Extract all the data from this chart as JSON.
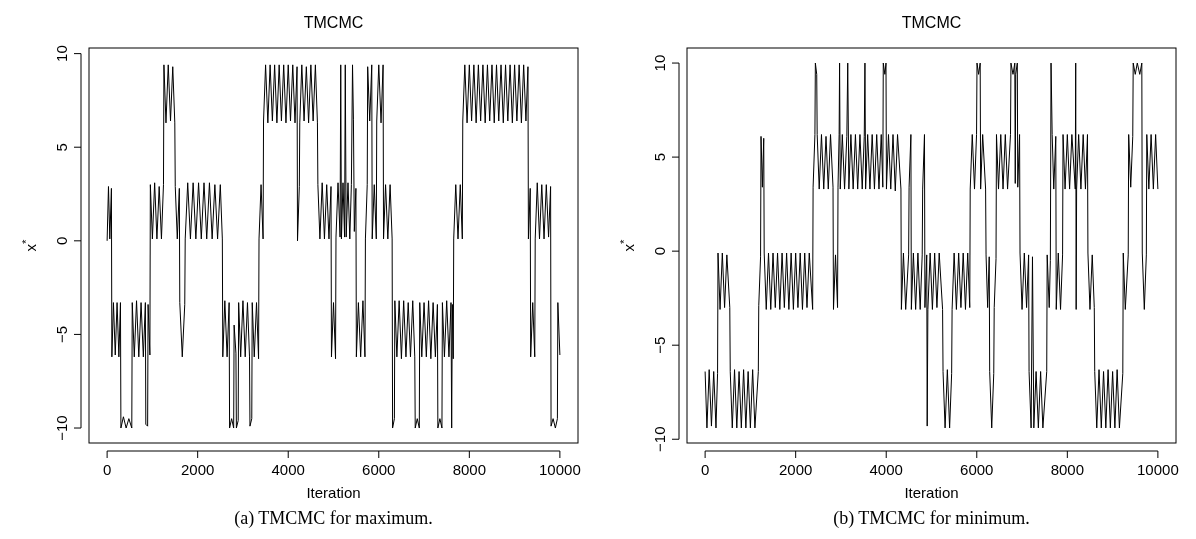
{
  "chart_data": [
    {
      "type": "line",
      "title": "TMCMC",
      "xlabel": "Iteration",
      "ylabel": "x$^{*}$",
      "annotations": [
        "(a)  TMCMC for maximum."
      ],
      "xlim": [
        -400,
        10400
      ],
      "ylim": [
        -10.8,
        10.3
      ],
      "xticks": [
        0,
        2000,
        4000,
        6000,
        8000,
        10000
      ],
      "yticks": [
        -10,
        -5,
        0,
        5,
        10
      ],
      "line_style": "solid",
      "marker": "none",
      "series": [
        {
          "color": "#000000",
          "x": [
            0,
            30,
            60,
            95,
            105,
            140,
            180,
            220,
            260,
            295,
            305,
            360,
            420,
            480,
            545,
            555,
            600,
            650,
            700,
            750,
            800,
            845,
            855,
            895,
            905,
            945,
            955,
            1000,
            1050,
            1100,
            1150,
            1200,
            1245,
            1255,
            1300,
            1350,
            1400,
            1450,
            1495,
            1505,
            1550,
            1595,
            1605,
            1660,
            1715,
            1725,
            1780,
            1840,
            1900,
            1960,
            2020,
            2080,
            2140,
            2200,
            2260,
            2320,
            2380,
            2440,
            2500,
            2545,
            2555,
            2600,
            2650,
            2695,
            2705,
            2750,
            2795,
            2805,
            2845,
            2855,
            2895,
            2905,
            2950,
            3000,
            3050,
            3100,
            3145,
            3155,
            3195,
            3205,
            3250,
            3300,
            3345,
            3355,
            3400,
            3445,
            3455,
            3500,
            3550,
            3600,
            3650,
            3700,
            3750,
            3800,
            3850,
            3900,
            3950,
            4000,
            4050,
            4100,
            4150,
            4195,
            4205,
            4245,
            4255,
            4300,
            4350,
            4400,
            4450,
            4500,
            4550,
            4600,
            4645,
            4655,
            4700,
            4750,
            4800,
            4850,
            4900,
            4945,
            4955,
            5000,
            5045,
            5055,
            5100,
            5145,
            5160,
            5175,
            5210,
            5245,
            5260,
            5280,
            5320,
            5360,
            5395,
            5420,
            5440,
            5460,
            5495,
            5505,
            5550,
            5600,
            5650,
            5695,
            5705,
            5745,
            5755,
            5800,
            5845,
            5855,
            5900,
            5945,
            5955,
            6000,
            6050,
            6095,
            6105,
            6150,
            6200,
            6250,
            6295,
            6305,
            6345,
            6355,
            6400,
            6450,
            6500,
            6550,
            6600,
            6650,
            6700,
            6750,
            6795,
            6805,
            6850,
            6895,
            6905,
            6950,
            7000,
            7050,
            7100,
            7150,
            7200,
            7250,
            7295,
            7305,
            7350,
            7395,
            7405,
            7450,
            7500,
            7550,
            7595,
            7610,
            7625,
            7645,
            7655,
            7700,
            7750,
            7800,
            7845,
            7855,
            7900,
            7950,
            8000,
            8050,
            8100,
            8150,
            8200,
            8250,
            8300,
            8350,
            8400,
            8450,
            8500,
            8550,
            8600,
            8650,
            8700,
            8750,
            8800,
            8850,
            8900,
            8950,
            9000,
            9050,
            9100,
            9150,
            9200,
            9250,
            9295,
            9305,
            9345,
            9355,
            9400,
            9445,
            9455,
            9500,
            9550,
            9600,
            9650,
            9700,
            9750,
            9795,
            9805,
            9850,
            9900,
            9945,
            9955,
            10000
          ],
          "values": [
            0,
            2.9,
            0.1,
            2.8,
            -6.2,
            -3.3,
            -6.1,
            -3.3,
            -6.2,
            -3.3,
            -10,
            -9.4,
            -10,
            -9.5,
            -10,
            -3.3,
            -6.2,
            -3.2,
            -6.2,
            -3.3,
            -6.2,
            -3.3,
            -9.8,
            -9.9,
            -3.4,
            -6.1,
            3.0,
            0.1,
            3.1,
            0.1,
            2.9,
            0.1,
            3.0,
            9.4,
            6.3,
            9.4,
            6.4,
            9.3,
            6.3,
            2.9,
            0.1,
            2.8,
            -3.3,
            -6.2,
            -3.4,
            0.1,
            3.1,
            0.1,
            3.1,
            0.1,
            3.1,
            0.1,
            3.1,
            0.1,
            3.1,
            0.1,
            3.0,
            0.1,
            3.0,
            0.1,
            -6.2,
            -3.2,
            -6.2,
            -3.3,
            -10,
            -9.5,
            -10,
            -4.5,
            -6,
            -10,
            -9.6,
            -3.3,
            -6.2,
            -3.2,
            -6.2,
            -3.3,
            -6.2,
            -9.9,
            -9.5,
            -3.3,
            -6.2,
            -3.3,
            -6.3,
            0.1,
            3.0,
            0.1,
            6.4,
            9.4,
            6.3,
            9.4,
            6.4,
            9.4,
            6.3,
            9.4,
            6.4,
            9.4,
            6.3,
            9.4,
            6.4,
            9.4,
            6.3,
            9.3,
            0,
            2.9,
            6.3,
            9.4,
            6.4,
            9.3,
            6.3,
            9.4,
            6.4,
            9.4,
            6.3,
            3.0,
            0.1,
            3.1,
            0.1,
            3.0,
            0.1,
            2.9,
            -6.2,
            -3.3,
            -6.3,
            0.2,
            3.1,
            0.2,
            9.4,
            0.1,
            3.1,
            0.2,
            9.4,
            0.2,
            3.1,
            0.1,
            3.0,
            9.4,
            6.5,
            0.5,
            2.8,
            -6.2,
            -3.3,
            -6.2,
            -3.2,
            -6.2,
            0.1,
            3.0,
            9.3,
            6.4,
            9.4,
            0.1,
            3.0,
            0.1,
            6.4,
            9.4,
            6.3,
            9.4,
            0.1,
            3.0,
            0.1,
            3.0,
            0.1,
            -10,
            -9.5,
            -3.2,
            -6.2,
            -3.2,
            -6.3,
            -3.2,
            -6.2,
            -3.3,
            -6.2,
            -3.2,
            -6.2,
            -10,
            -9.5,
            -10,
            -3.3,
            -6.2,
            -3.3,
            -6.2,
            -3.2,
            -6.3,
            -3.3,
            -6.2,
            -3.4,
            -10,
            -9.5,
            -10,
            -3.3,
            -6.2,
            -3.2,
            -6.2,
            -3.3,
            -10,
            -3.4,
            -6.3,
            0.1,
            3.0,
            0.1,
            3.0,
            0.1,
            6.4,
            9.4,
            6.3,
            9.4,
            6.4,
            9.4,
            6.3,
            9.4,
            6.4,
            9.4,
            6.3,
            9.4,
            6.4,
            9.4,
            6.3,
            9.4,
            6.4,
            9.4,
            6.3,
            9.4,
            6.4,
            9.4,
            6.3,
            9.4,
            6.4,
            9.4,
            6.3,
            9.4,
            6.4,
            9.3,
            0.1,
            2.8,
            -6.2,
            -3.3,
            -6.2,
            0.1,
            3.1,
            0.1,
            3.0,
            0.1,
            3.0,
            0.2,
            2.9,
            -9.9,
            -9.5,
            -10,
            -9.5,
            -3.3,
            -6.1
          ]
        }
      ]
    },
    {
      "type": "line",
      "title": "TMCMC",
      "xlabel": "Iteration",
      "ylabel": "x$^{*}$",
      "annotations": [
        "(b)  TMCMC for minimum."
      ],
      "xlim": [
        -400,
        10400
      ],
      "ylim": [
        -10.2,
        10.8
      ],
      "xticks": [
        0,
        2000,
        4000,
        6000,
        8000,
        10000
      ],
      "yticks": [
        -10,
        -5,
        0,
        5,
        10
      ],
      "line_style": "solid",
      "marker": "none",
      "series": [
        {
          "color": "#000000",
          "x": [
            0,
            40,
            90,
            140,
            190,
            240,
            275,
            285,
            330,
            380,
            430,
            480,
            545,
            555,
            600,
            650,
            700,
            750,
            800,
            850,
            900,
            950,
            1000,
            1050,
            1100,
            1175,
            1185,
            1225,
            1235,
            1265,
            1295,
            1305,
            1350,
            1400,
            1450,
            1500,
            1550,
            1600,
            1650,
            1700,
            1750,
            1800,
            1850,
            1900,
            1950,
            2000,
            2050,
            2100,
            2150,
            2200,
            2250,
            2300,
            2375,
            2385,
            2425,
            2435,
            2465,
            2475,
            2520,
            2570,
            2620,
            2670,
            2720,
            2770,
            2825,
            2835,
            2880,
            2925,
            2935,
            2960,
            2970,
            2985,
            3030,
            3080,
            3130,
            3150,
            3175,
            3220,
            3270,
            3320,
            3370,
            3420,
            3470,
            3515,
            3530,
            3545,
            3590,
            3640,
            3690,
            3740,
            3790,
            3840,
            3890,
            3925,
            3935,
            3970,
            3995,
            4005,
            4050,
            4100,
            4150,
            4200,
            4250,
            4325,
            4335,
            4380,
            4430,
            4495,
            4505,
            4545,
            4555,
            4600,
            4650,
            4700,
            4750,
            4795,
            4805,
            4845,
            4855,
            4895,
            4905,
            4920,
            4970,
            5020,
            5070,
            5120,
            5170,
            5245,
            5255,
            5300,
            5350,
            5400,
            5445,
            5455,
            5500,
            5550,
            5600,
            5650,
            5700,
            5750,
            5800,
            5845,
            5855,
            5900,
            5950,
            5995,
            6005,
            6040,
            6075,
            6085,
            6130,
            6195,
            6205,
            6240,
            6275,
            6285,
            6330,
            6375,
            6385,
            6425,
            6435,
            6480,
            6530,
            6580,
            6630,
            6680,
            6745,
            6755,
            6800,
            6840,
            6850,
            6860,
            6895,
            6905,
            6945,
            6955,
            7000,
            7050,
            7100,
            7145,
            7155,
            7200,
            7230,
            7260,
            7310,
            7360,
            7410,
            7460,
            7545,
            7555,
            7600,
            7625,
            7640,
            7665,
            7700,
            7745,
            7755,
            7800,
            7850,
            7895,
            7905,
            7950,
            8000,
            8050,
            8100,
            8175,
            8185,
            8195,
            8205,
            8250,
            8300,
            8350,
            8400,
            8445,
            8455,
            8500,
            8550,
            8595,
            8605,
            8650,
            8700,
            8750,
            8800,
            8850,
            8900,
            8950,
            9000,
            9050,
            9100,
            9150,
            9225,
            9235,
            9280,
            9345,
            9355,
            9400,
            9445,
            9455,
            9500,
            9545,
            9600,
            9645,
            9655,
            9700,
            9745,
            9755,
            9800,
            9850,
            9900,
            9950,
            10000
          ],
          "values": [
            -6.4,
            -9.4,
            -6.3,
            -9.3,
            -6.4,
            -9.4,
            -6.5,
            -0.1,
            -3.1,
            -0.1,
            -3.0,
            -0.2,
            -3.0,
            -6.4,
            -9.4,
            -6.3,
            -9.4,
            -6.4,
            -9.4,
            -6.3,
            -9.4,
            -6.4,
            -9.4,
            -6.3,
            -9.4,
            -6.4,
            -2.9,
            -0.3,
            6.1,
            3.4,
            6.0,
            -0.1,
            -3.1,
            -0.1,
            -3.1,
            -0.1,
            -3.0,
            -0.1,
            -3.1,
            -0.1,
            -3.0,
            -0.1,
            -3.1,
            -0.1,
            -3.1,
            -0.1,
            -3.0,
            -0.1,
            -3.1,
            -0.1,
            -3.0,
            -0.1,
            -3.1,
            3.4,
            6.2,
            10,
            9.4,
            6.2,
            3.3,
            6.2,
            3.3,
            6.1,
            3.3,
            6.2,
            3.4,
            -3.1,
            -0.2,
            -3.0,
            3.4,
            6.2,
            10,
            3.3,
            6.2,
            3.3,
            6.1,
            10,
            3.3,
            6.2,
            3.3,
            6.2,
            3.3,
            6.2,
            3.3,
            6.1,
            10,
            3.3,
            6.2,
            3.3,
            6.2,
            3.3,
            6.2,
            3.3,
            6.2,
            3.4,
            10,
            9.4,
            10,
            3.3,
            6.2,
            3.3,
            6.2,
            3.2,
            6.2,
            3.3,
            -3.1,
            -0.1,
            -3.1,
            -0.2,
            3.4,
            6.2,
            -3.1,
            -0.1,
            -3.1,
            -0.1,
            -3.1,
            -0.2,
            3.3,
            6.2,
            -3.0,
            -0.2,
            -9.3,
            -3.1,
            -0.1,
            -3.1,
            -0.1,
            -3.0,
            -0.1,
            -3.1,
            -6.4,
            -9.4,
            -6.3,
            -9.4,
            -6.5,
            -3.1,
            -0.1,
            -3.1,
            -0.1,
            -3.0,
            -0.1,
            -3.1,
            -0.1,
            -3.0,
            3.3,
            6.2,
            3.3,
            6.2,
            10,
            9.4,
            10,
            3.3,
            6.2,
            3.3,
            -0.2,
            -3.0,
            -0.3,
            -6.4,
            -9.4,
            -6.5,
            -3.0,
            -0.4,
            6.2,
            3.3,
            6.2,
            3.3,
            6.2,
            3.3,
            6.2,
            10,
            9.4,
            10,
            3.6,
            9.4,
            10,
            3.4,
            6.2,
            -0.1,
            -3.1,
            -0.1,
            -3.0,
            -0.2,
            -6.4,
            -9.4,
            -0.3,
            -9.4,
            -6.4,
            -9.4,
            -6.4,
            -9.4,
            -6.4,
            -0.2,
            -3.0,
            -0.5,
            10,
            6.2,
            3.3,
            6.1,
            -3.1,
            -0.1,
            -3.1,
            -0.2,
            6.2,
            3.3,
            6.2,
            3.3,
            6.2,
            3.3,
            10,
            -3.1,
            3.3,
            6.2,
            3.3,
            6.2,
            3.3,
            6.2,
            -0.1,
            -3.1,
            -0.2,
            -3.0,
            -6.4,
            -9.4,
            -6.3,
            -9.4,
            -6.4,
            -9.4,
            -6.3,
            -9.4,
            -6.4,
            -9.4,
            -6.3,
            -9.4,
            -6.5,
            -0.1,
            -3.1,
            -0.2,
            6.2,
            3.4,
            6.1,
            10,
            9.4,
            10,
            9.4,
            10,
            -0.1,
            -3.1,
            -0.2,
            6.2,
            3.3,
            6.2,
            3.3,
            6.2,
            3.3
          ]
        }
      ]
    }
  ]
}
